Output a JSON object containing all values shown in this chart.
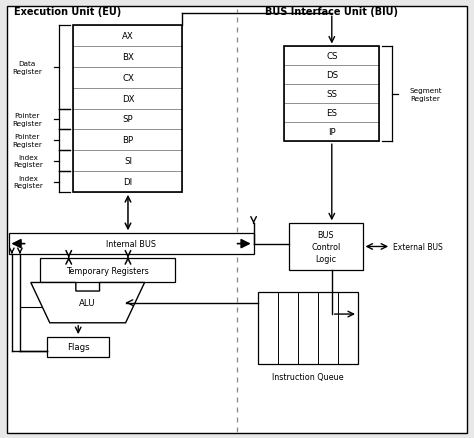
{
  "title_eu": "Execution Unit (EU)",
  "title_biu": "BUS Interface Unit (BIU)",
  "eu_registers": [
    "AX",
    "BX",
    "CX",
    "DX",
    "SP",
    "BP",
    "SI",
    "DI"
  ],
  "biu_registers": [
    "CS",
    "DS",
    "SS",
    "ES",
    "IP"
  ],
  "label_data_register": "Data\nRegister",
  "label_pointer_sp": "Pointer\nRegister",
  "label_pointer_bp": "Pointer\nRegister",
  "label_index_si": "Index\nRegister",
  "label_index_di": "Index\nRegister",
  "label_segment_register": "Segment\nRegister",
  "label_internal_bus": "Internal BUS",
  "label_temp_reg": "Temporary Registers",
  "label_alu": "ALU",
  "label_flags": "Flags",
  "label_bus_control": "BUS\nControl\nLogic",
  "label_ext_bus": "External BUS",
  "label_instr_queue": "Instruction Queue",
  "bg_color": "#e8e8e8",
  "box_color": "#ffffff",
  "border_color": "#000000",
  "text_color": "#000000",
  "dashed_line_color": "#888888"
}
